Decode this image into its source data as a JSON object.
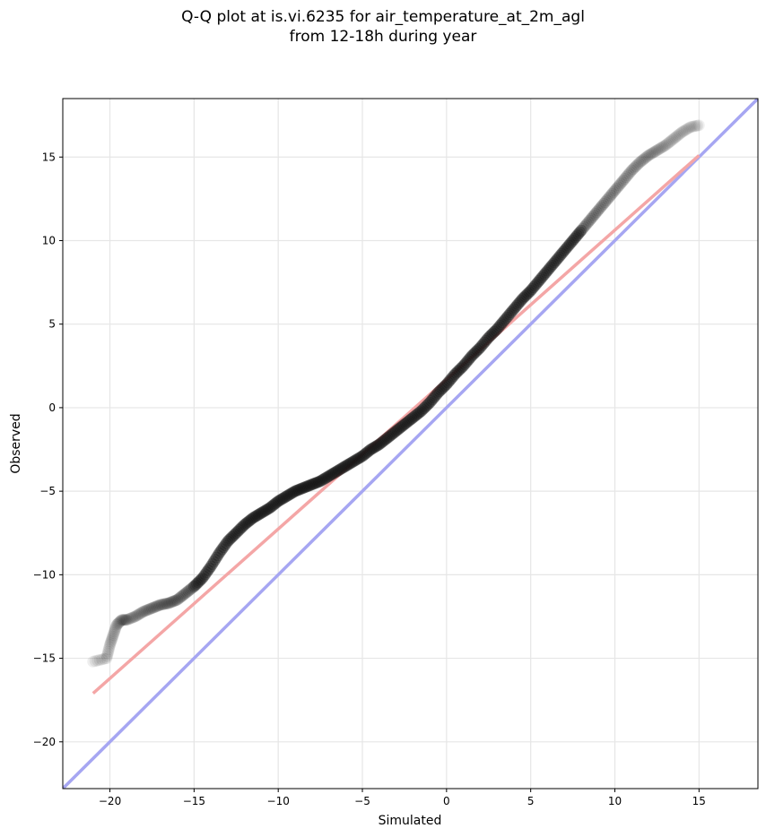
{
  "chart_data": {
    "type": "scatter",
    "title_line1": "Q-Q plot at is.vi.6235 for air_temperature_at_2m_agl",
    "title_line2": "from 12-18h during year",
    "xlabel": "Simulated",
    "ylabel": "Observed",
    "xlim": [
      -22.8,
      18.5
    ],
    "ylim": [
      -22.8,
      18.5
    ],
    "xticks": [
      -20,
      -15,
      -10,
      -5,
      0,
      5,
      10,
      15
    ],
    "yticks": [
      -20,
      -15,
      -10,
      -5,
      0,
      5,
      10,
      15
    ],
    "grid": true,
    "tick_labels": [
      "−20",
      "−15",
      "−10",
      "−5",
      "0",
      "5",
      "10",
      "15"
    ],
    "quantiles": {
      "x": [
        -21.0,
        -20.2,
        -20.0,
        -19.8,
        -19.6,
        -19.3,
        -19.0,
        -18.5,
        -18.0,
        -17.5,
        -17.0,
        -16.5,
        -16.0,
        -15.5,
        -15.0,
        -14.5,
        -14.0,
        -13.5,
        -13.0,
        -12.5,
        -12.0,
        -11.5,
        -11.0,
        -10.5,
        -10.0,
        -9.5,
        -9.0,
        -8.5,
        -8.0,
        -7.5,
        -7.0,
        -6.5,
        -6.0,
        -5.5,
        -5.0,
        -4.5,
        -4.0,
        -3.5,
        -3.0,
        -2.5,
        -2.0,
        -1.5,
        -1.0,
        -0.5,
        0.0,
        0.5,
        1.0,
        1.5,
        2.0,
        2.5,
        3.0,
        3.5,
        4.0,
        4.5,
        5.0,
        5.5,
        6.0,
        6.5,
        7.0,
        7.5,
        8.0,
        8.5,
        9.0,
        9.5,
        10.0,
        10.5,
        11.0,
        11.5,
        12.0,
        12.5,
        13.0,
        13.5,
        14.0,
        14.5,
        15.0
      ],
      "y": [
        -15.2,
        -15.0,
        -14.2,
        -13.6,
        -13.0,
        -12.7,
        -12.7,
        -12.5,
        -12.2,
        -12.0,
        -11.8,
        -11.7,
        -11.5,
        -11.1,
        -10.7,
        -10.2,
        -9.5,
        -8.7,
        -8.0,
        -7.5,
        -7.0,
        -6.6,
        -6.3,
        -6.0,
        -5.6,
        -5.3,
        -5.0,
        -4.8,
        -4.6,
        -4.4,
        -4.1,
        -3.8,
        -3.5,
        -3.2,
        -2.9,
        -2.5,
        -2.2,
        -1.8,
        -1.4,
        -1.0,
        -0.6,
        -0.2,
        0.3,
        0.9,
        1.4,
        2.0,
        2.5,
        3.1,
        3.6,
        4.2,
        4.7,
        5.3,
        5.9,
        6.5,
        7.0,
        7.6,
        8.2,
        8.8,
        9.4,
        10.0,
        10.6,
        11.2,
        11.8,
        12.4,
        13.0,
        13.6,
        14.2,
        14.7,
        15.1,
        15.4,
        15.7,
        16.1,
        16.5,
        16.8,
        16.9
      ]
    },
    "regression_line": {
      "x": [
        -21.0,
        15.0
      ],
      "y": [
        -17.1,
        15.1
      ],
      "color": "#f4a6a6"
    },
    "identity_line": {
      "x": [
        -22.8,
        18.5
      ],
      "y": [
        -22.8,
        18.5
      ],
      "color": "#a6a6f2"
    },
    "point_color": "#111111"
  }
}
